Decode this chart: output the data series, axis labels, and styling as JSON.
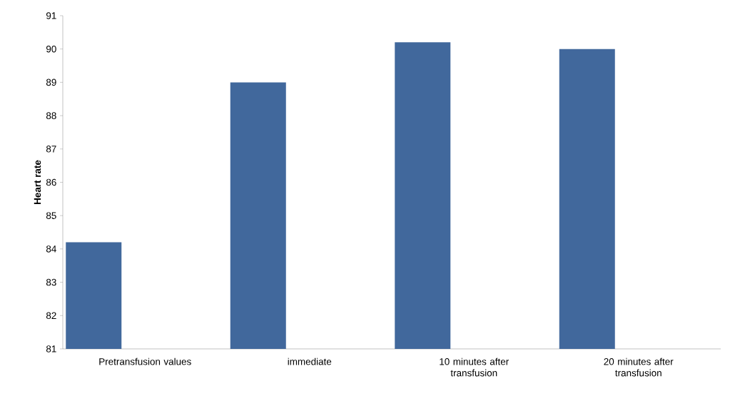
{
  "chart_data": {
    "type": "bar",
    "ylabel": "Heart rate",
    "categories": [
      "Pretransfusion values",
      "immediate",
      "10 minutes after transfusion",
      "20 minutes after transfusion"
    ],
    "values": [
      84.2,
      89,
      90.2,
      90
    ],
    "color": "#41689c",
    "ylim": [
      81,
      91
    ],
    "yticks": [
      81,
      82,
      83,
      84,
      85,
      86,
      87,
      88,
      89,
      90,
      91
    ],
    "grid": false
  }
}
